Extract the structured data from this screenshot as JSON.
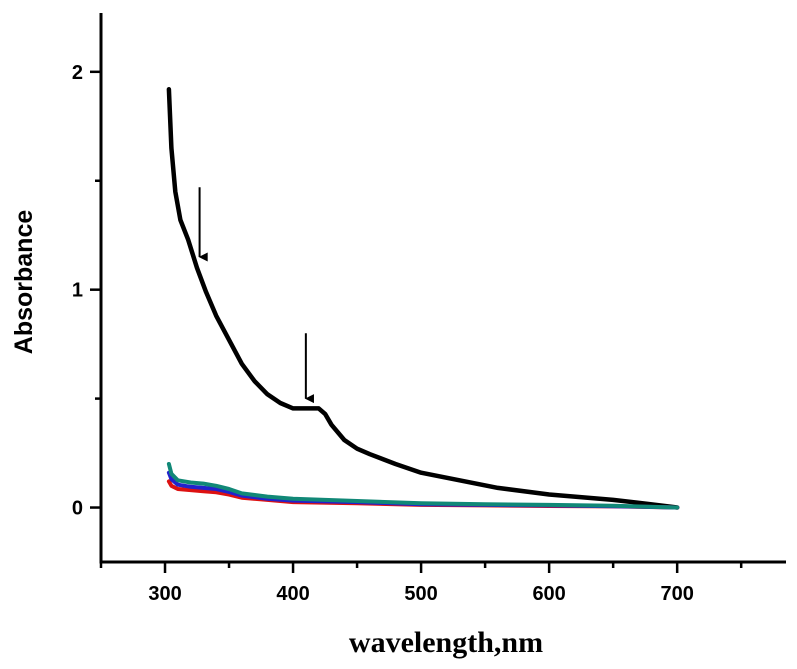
{
  "chart_data": {
    "type": "line",
    "title": "",
    "xlabel": "wavelength,nm",
    "ylabel": "Absorbance",
    "xlim": [
      250,
      785
    ],
    "ylim": [
      -0.25,
      2.27
    ],
    "xticks": [
      300,
      400,
      500,
      600,
      700
    ],
    "xticklabels": [
      "300",
      "400",
      "500",
      "600",
      "700"
    ],
    "yticks": [
      0,
      1,
      2
    ],
    "yticklabels": [
      "0",
      "1",
      "2"
    ],
    "grid": false,
    "legend": "none",
    "series": [
      {
        "color": "#000000",
        "x": [
          303,
          305,
          308,
          312,
          318,
          325,
          332,
          340,
          350,
          360,
          370,
          380,
          390,
          400,
          410,
          420,
          425,
          430,
          440,
          450,
          460,
          480,
          500,
          530,
          560,
          600,
          650,
          680,
          700
        ],
        "y": [
          1.92,
          1.65,
          1.45,
          1.32,
          1.23,
          1.1,
          0.99,
          0.88,
          0.77,
          0.66,
          0.58,
          0.52,
          0.48,
          0.455,
          0.455,
          0.455,
          0.43,
          0.38,
          0.31,
          0.27,
          0.245,
          0.2,
          0.16,
          0.125,
          0.09,
          0.06,
          0.035,
          0.015,
          0.0
        ]
      },
      {
        "color": "#dd1111",
        "x": [
          303,
          305,
          310,
          320,
          330,
          340,
          350,
          360,
          380,
          400,
          450,
          500,
          550,
          600,
          650,
          700
        ],
        "y": [
          0.12,
          0.1,
          0.085,
          0.08,
          0.075,
          0.07,
          0.06,
          0.045,
          0.035,
          0.025,
          0.02,
          0.012,
          0.01,
          0.007,
          0.005,
          0.0
        ]
      },
      {
        "color": "#2222cc",
        "x": [
          303,
          305,
          310,
          320,
          330,
          340,
          350,
          360,
          380,
          400,
          450,
          500,
          550,
          600,
          650,
          700
        ],
        "y": [
          0.16,
          0.13,
          0.105,
          0.095,
          0.09,
          0.085,
          0.072,
          0.055,
          0.04,
          0.032,
          0.025,
          0.015,
          0.012,
          0.01,
          0.006,
          0.0
        ]
      },
      {
        "color": "#118877",
        "x": [
          303,
          305,
          310,
          320,
          330,
          340,
          350,
          360,
          380,
          400,
          450,
          500,
          550,
          600,
          650,
          700
        ],
        "y": [
          0.2,
          0.155,
          0.125,
          0.115,
          0.11,
          0.1,
          0.085,
          0.065,
          0.05,
          0.04,
          0.03,
          0.02,
          0.015,
          0.012,
          0.008,
          0.0
        ]
      }
    ],
    "annotations": [
      {
        "type": "arrow-down",
        "x": 327,
        "y_from": 1.47,
        "y_to": 1.15
      },
      {
        "type": "arrow-down",
        "x": 410,
        "y_from": 0.8,
        "y_to": 0.5
      }
    ]
  }
}
